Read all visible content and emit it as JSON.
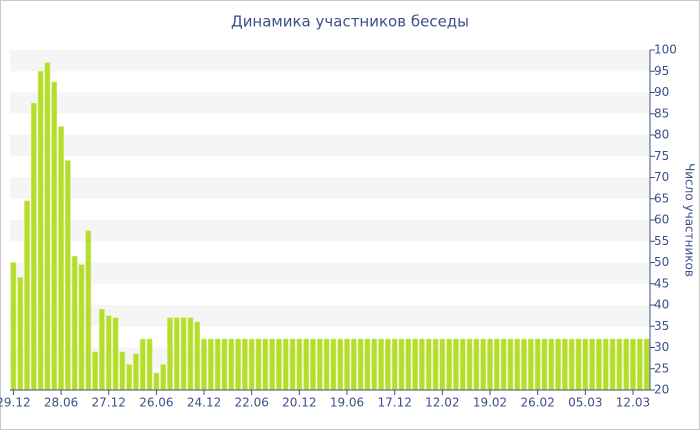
{
  "chart_data": {
    "type": "bar",
    "title": "Динамика участников беседы",
    "y_label": "Число участников",
    "categories": [
      "29.12",
      null,
      null,
      null,
      null,
      null,
      null,
      "28.06",
      null,
      null,
      null,
      null,
      null,
      null,
      "27.12",
      null,
      null,
      null,
      null,
      null,
      null,
      "26.06",
      null,
      null,
      null,
      null,
      null,
      null,
      "24.12",
      null,
      null,
      null,
      null,
      null,
      null,
      "22.06",
      null,
      null,
      null,
      null,
      null,
      null,
      "20.12",
      null,
      null,
      null,
      null,
      null,
      null,
      "19.06",
      null,
      null,
      null,
      null,
      null,
      null,
      "17.12",
      null,
      null,
      null,
      null,
      null,
      null,
      "12.02",
      null,
      null,
      null,
      null,
      null,
      null,
      "19.02",
      null,
      null,
      null,
      null,
      null,
      null,
      "26.02",
      null,
      null,
      null,
      null,
      null,
      null,
      "05.03",
      null,
      null,
      null,
      null,
      null,
      null,
      "12.03",
      null,
      null
    ],
    "values": [
      50,
      46.5,
      64.5,
      87.5,
      95,
      97,
      92.5,
      82,
      74,
      51.5,
      49.5,
      57.5,
      29,
      39,
      37.5,
      37,
      29,
      26,
      28.5,
      32,
      32,
      24,
      26,
      37,
      37,
      37,
      37,
      36,
      32,
      32,
      32,
      32,
      32,
      32,
      32,
      32,
      32,
      32,
      32,
      32,
      32,
      32,
      32,
      32,
      32,
      32,
      32,
      32,
      32,
      32,
      32,
      32,
      32,
      32,
      32,
      32,
      32,
      32,
      32,
      32,
      32,
      32,
      32,
      32,
      32,
      32,
      32,
      32,
      32,
      32,
      32,
      32,
      32,
      32,
      32,
      32,
      32,
      32,
      32,
      32,
      32,
      32,
      32,
      32,
      32,
      32,
      32,
      32,
      32,
      32,
      32,
      32,
      32,
      32
    ],
    "color": "#b5de2c",
    "ylim": [
      20,
      100
    ],
    "yticks": [
      20,
      25,
      30,
      35,
      40,
      45,
      50,
      55,
      60,
      65,
      70,
      75,
      80,
      85,
      90,
      95,
      100
    ],
    "grid": true
  }
}
